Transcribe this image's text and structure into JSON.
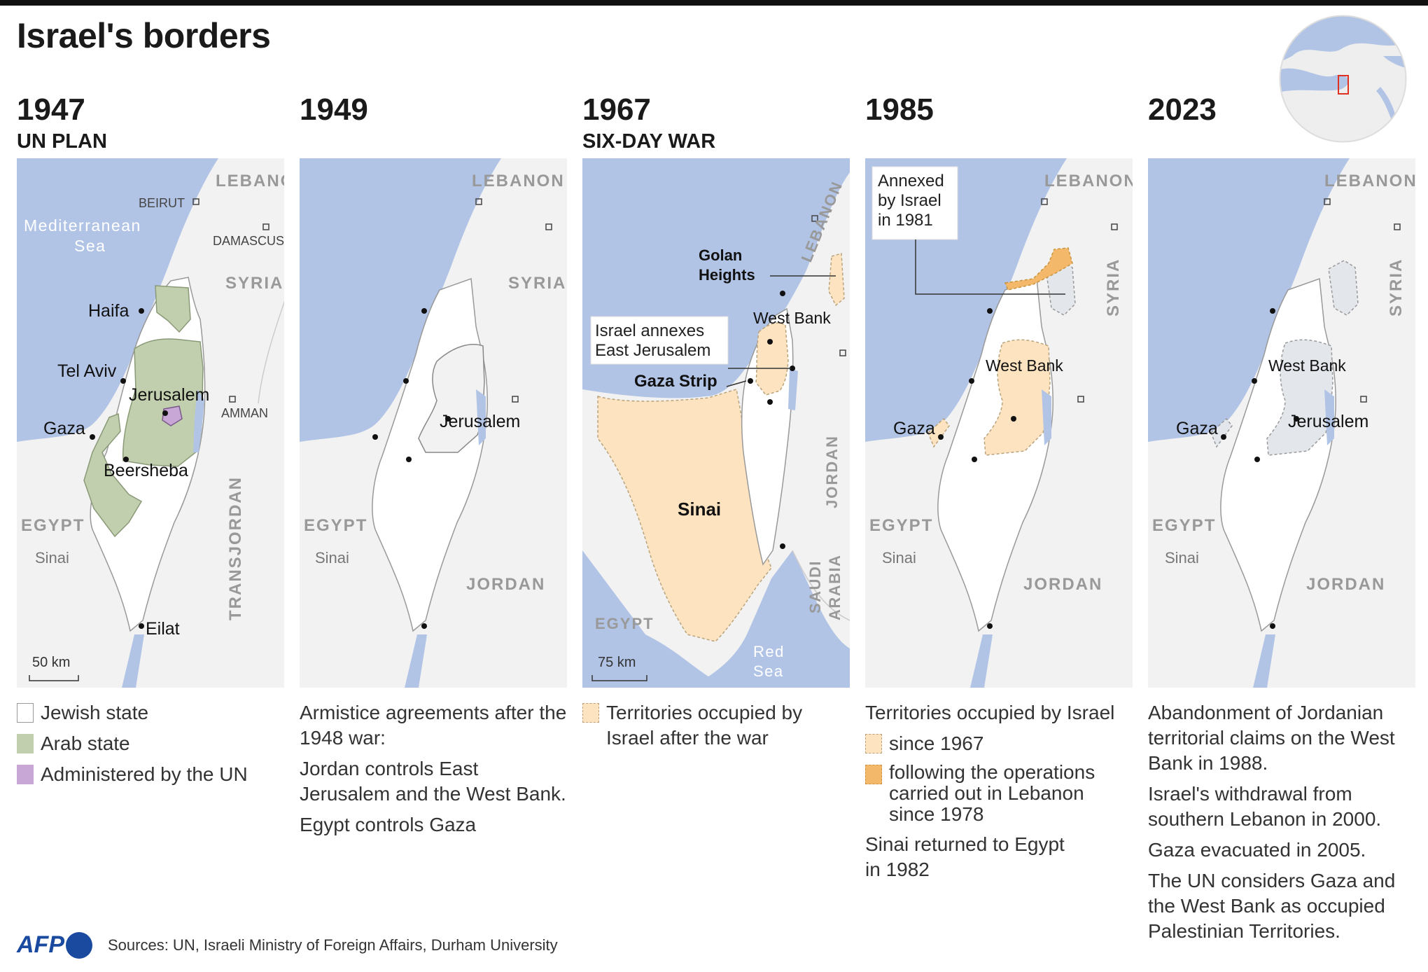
{
  "title": "Israel's borders",
  "colors": {
    "sea": "#b2c4e6",
    "land": "#f2f2f2",
    "israel": "#ffffff",
    "arab_state": "#c2cfae",
    "un": "#c8a6d6",
    "occupied_1967": "#fde3c0",
    "occupied_1978": "#f4b86a",
    "palestinian": "#e3e7ec"
  },
  "panels": [
    {
      "year": "1947",
      "subtitle": "UN PLAN",
      "map_labels": {
        "lebanon": "LEBANON",
        "beirut": "BEIRUT",
        "med_1": "Mediterranean",
        "med_2": "Sea",
        "damascus": "DAMASCUS",
        "syria": "SYRIA",
        "haifa": "Haifa",
        "tel_aviv": "Tel Aviv",
        "jerusalem": "Jerusalem",
        "amman": "AMMAN",
        "gaza": "Gaza",
        "beersheba": "Beersheba",
        "egypt": "EGYPT",
        "sinai": "Sinai",
        "transjordan": "TRANSJORDAN",
        "eilat": "Eilat",
        "scale": "50 km"
      },
      "legend": [
        {
          "label": "Jewish state",
          "icon": "white-square"
        },
        {
          "label": "Arab state",
          "icon": "green-square"
        },
        {
          "label": "Administered by the UN",
          "icon": "purple-square"
        }
      ]
    },
    {
      "year": "1949",
      "subtitle": "",
      "map_labels": {
        "lebanon": "LEBANON",
        "syria": "SYRIA",
        "jerusalem": "Jerusalem",
        "egypt": "EGYPT",
        "sinai": "Sinai",
        "jordan": "JORDAN"
      },
      "text": [
        "Armistice agreements after the 1948 war:",
        "Jordan controls East Jerusalem and the West Bank.",
        "Egypt controls Gaza"
      ]
    },
    {
      "year": "1967",
      "subtitle": "SIX-DAY WAR",
      "map_labels": {
        "lebanon": "LEBANON",
        "golan_1": "Golan",
        "golan_2": "Heights",
        "west_bank": "West Bank",
        "annex_1": "Israel annexes",
        "annex_2": "East Jerusalem",
        "gaza_strip": "Gaza Strip",
        "sinai": "Sinai",
        "jordan": "JORDAN",
        "saudi_1": "SAUDI",
        "saudi_2": "ARABIA",
        "egypt": "EGYPT",
        "red_1": "Red",
        "red_2": "Sea",
        "scale": "75 km"
      },
      "legend": [
        {
          "label": "Territories occupied by Israel after the war",
          "icon": "beige-dashed-square"
        }
      ]
    },
    {
      "year": "1985",
      "subtitle": "",
      "map_labels": {
        "annexed_1": "Annexed",
        "annexed_2": "by Israel",
        "annexed_3": "in 1981",
        "lebanon": "LEBANON",
        "syria": "SYRIA",
        "west_bank": "West Bank",
        "gaza": "Gaza",
        "egypt": "EGYPT",
        "sinai": "Sinai",
        "jordan": "JORDAN"
      },
      "legend_title": "Territories occupied by Israel",
      "legend": [
        {
          "label": "since 1967",
          "icon": "beige-square"
        },
        {
          "label": "following the operations carried out in Lebanon since 1978",
          "icon": "orange-square"
        }
      ],
      "text": [
        "Sinai returned to Egypt in 1982"
      ]
    },
    {
      "year": "2023",
      "subtitle": "",
      "map_labels": {
        "lebanon": "LEBANON",
        "syria": "SYRIA",
        "west_bank": "West Bank",
        "gaza": "Gaza",
        "jerusalem": "Jerusalem",
        "egypt": "EGYPT",
        "sinai": "Sinai",
        "jordan": "JORDAN"
      },
      "text": [
        "Abandonment of Jordanian territorial claims on the West Bank in 1988.",
        "Israel's withdrawal from southern Lebanon in 2000.",
        "Gaza evacuated in 2005.",
        "The UN considers Gaza and the West Bank as occupied Palestinian Territories."
      ]
    }
  ],
  "footer": {
    "brand": "AFP",
    "sources": "Sources: UN, Israeli Ministry of Foreign Affairs, Durham University"
  }
}
